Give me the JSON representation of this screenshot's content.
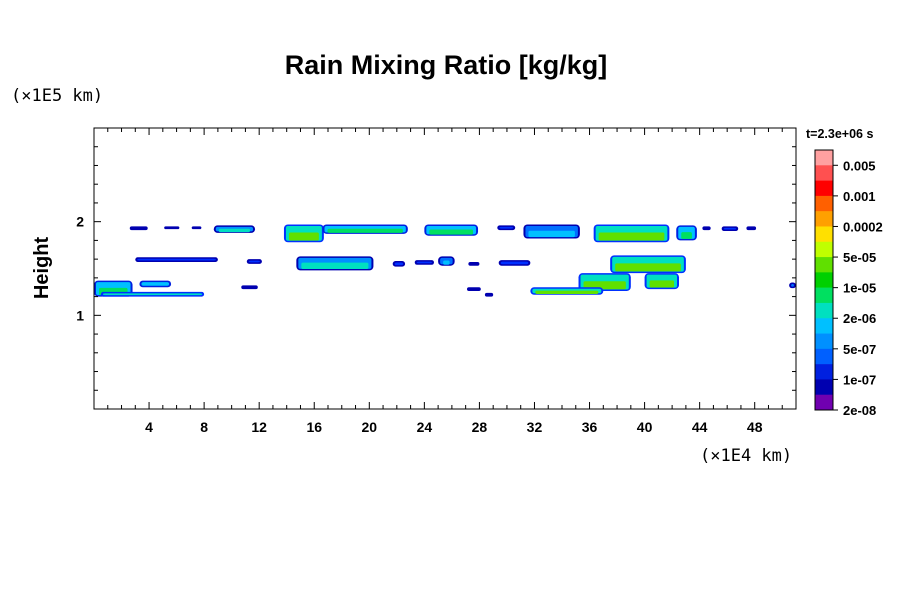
{
  "chart_data": {
    "type": "heatmap",
    "title": "Rain Mixing Ratio [kg/kg]",
    "ylabel": "Height",
    "y_unit_label": "(×1E5 km)",
    "x_unit_label": "(×1E4 km)",
    "time_label": "t=2.3e+06 s",
    "xlim": [
      0,
      51
    ],
    "ylim": [
      0,
      3
    ],
    "x_ticks": [
      4,
      8,
      12,
      16,
      20,
      24,
      28,
      32,
      36,
      40,
      44,
      48
    ],
    "x_tick_labels": [
      "4",
      "8",
      "12",
      "16",
      "20",
      "24",
      "28",
      "32",
      "36",
      "40",
      "44",
      "48"
    ],
    "y_ticks": [
      1,
      2
    ],
    "y_tick_labels": [
      "1",
      "2"
    ],
    "colorbar": {
      "labels": [
        "0.005",
        "0.001",
        "0.0002",
        "5e-05",
        "1e-05",
        "2e-06",
        "5e-07",
        "1e-07",
        "2e-08"
      ],
      "colors": [
        "#ffa0a0",
        "#ff5050",
        "#ff0000",
        "#ff6000",
        "#ffa000",
        "#ffe000",
        "#c0ff00",
        "#60e000",
        "#00d000",
        "#00e060",
        "#00e0c0",
        "#00c0ff",
        "#0090ff",
        "#0060ff",
        "#0020e0",
        "#0000b0",
        "#7000b0"
      ]
    },
    "regions": [
      {
        "x": [
          2.6,
          3.9
        ],
        "y": [
          1.95,
          1.91
        ],
        "level": "1e-07"
      },
      {
        "x": [
          5.1,
          6.2
        ],
        "y": [
          1.95,
          1.92
        ],
        "level": "1e-07"
      },
      {
        "x": [
          7.1,
          7.8
        ],
        "y": [
          1.95,
          1.92
        ],
        "level": "1e-07"
      },
      {
        "x": [
          8.7,
          11.7
        ],
        "y": [
          1.96,
          1.88
        ],
        "level": "1e-06"
      },
      {
        "x": [
          13.8,
          16.7
        ],
        "y": [
          1.97,
          1.78
        ],
        "level": "1e-05"
      },
      {
        "x": [
          16.6,
          22.8
        ],
        "y": [
          1.97,
          1.87
        ],
        "level": "2e-06"
      },
      {
        "x": [
          24.0,
          27.9
        ],
        "y": [
          1.97,
          1.85
        ],
        "level": "2e-06"
      },
      {
        "x": [
          29.3,
          30.6
        ],
        "y": [
          1.96,
          1.91
        ],
        "level": "1e-07"
      },
      {
        "x": [
          31.2,
          35.3
        ],
        "y": [
          1.97,
          1.82
        ],
        "level": "5e-07"
      },
      {
        "x": [
          36.3,
          41.8
        ],
        "y": [
          1.97,
          1.78
        ],
        "level": "1e-05"
      },
      {
        "x": [
          42.3,
          43.8
        ],
        "y": [
          1.96,
          1.8
        ],
        "level": "2e-06"
      },
      {
        "x": [
          44.2,
          44.8
        ],
        "y": [
          1.95,
          1.91
        ],
        "level": "1e-07"
      },
      {
        "x": [
          45.6,
          46.8
        ],
        "y": [
          1.95,
          1.9
        ],
        "level": "1e-07"
      },
      {
        "x": [
          47.4,
          48.1
        ],
        "y": [
          1.95,
          1.91
        ],
        "level": "1e-07"
      },
      {
        "x": [
          3.0,
          9.0
        ],
        "y": [
          1.62,
          1.57
        ],
        "level": "1e-07"
      },
      {
        "x": [
          11.1,
          12.2
        ],
        "y": [
          1.6,
          1.55
        ],
        "level": "1e-07"
      },
      {
        "x": [
          14.7,
          20.3
        ],
        "y": [
          1.63,
          1.48
        ],
        "level": "1e-06"
      },
      {
        "x": [
          21.7,
          22.6
        ],
        "y": [
          1.58,
          1.52
        ],
        "level": "1e-07"
      },
      {
        "x": [
          23.3,
          24.7
        ],
        "y": [
          1.59,
          1.54
        ],
        "level": "1e-07"
      },
      {
        "x": [
          25.0,
          26.2
        ],
        "y": [
          1.63,
          1.53
        ],
        "level": "5e-07"
      },
      {
        "x": [
          27.2,
          28.0
        ],
        "y": [
          1.57,
          1.53
        ],
        "level": "1e-07"
      },
      {
        "x": [
          29.4,
          31.7
        ],
        "y": [
          1.59,
          1.53
        ],
        "level": "1e-07"
      },
      {
        "x": [
          37.5,
          43.0
        ],
        "y": [
          1.64,
          1.45
        ],
        "level": "1e-05"
      },
      {
        "x": [
          35.2,
          39.0
        ],
        "y": [
          1.45,
          1.26
        ],
        "level": "1e-05"
      },
      {
        "x": [
          31.7,
          37.0
        ],
        "y": [
          1.3,
          1.22
        ],
        "level": "1e-05"
      },
      {
        "x": [
          40.0,
          42.5
        ],
        "y": [
          1.45,
          1.28
        ],
        "level": "1e-05"
      },
      {
        "x": [
          0.0,
          2.8
        ],
        "y": [
          1.37,
          1.2
        ],
        "level": "2e-06"
      },
      {
        "x": [
          3.3,
          5.6
        ],
        "y": [
          1.37,
          1.3
        ],
        "level": "2e-06"
      },
      {
        "x": [
          0.5,
          8.0
        ],
        "y": [
          1.25,
          1.2
        ],
        "level": "1e-05"
      },
      {
        "x": [
          10.7,
          11.9
        ],
        "y": [
          1.32,
          1.28
        ],
        "level": "5e-07"
      },
      {
        "x": [
          27.1,
          28.1
        ],
        "y": [
          1.3,
          1.26
        ],
        "level": "1e-06"
      },
      {
        "x": [
          28.4,
          29.0
        ],
        "y": [
          1.24,
          1.2
        ],
        "level": "5e-07"
      },
      {
        "x": [
          50.5,
          51.0
        ],
        "y": [
          1.35,
          1.29
        ],
        "level": "5e-07"
      }
    ]
  }
}
